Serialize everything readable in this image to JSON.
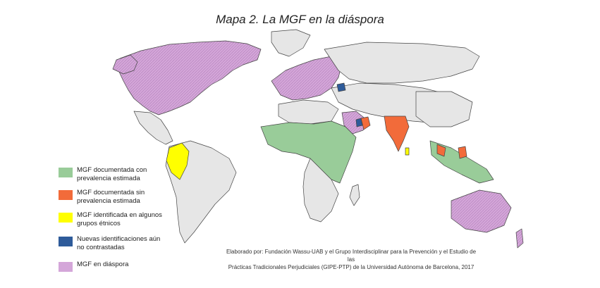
{
  "title": "Mapa 2. La MGF en la diáspora",
  "legend": {
    "items": [
      {
        "label": "MGF documentada con prevalencia estimada",
        "color": "#99cc99"
      },
      {
        "label": "MGF documentada sin prevalencia estimada",
        "color": "#f26b3a"
      },
      {
        "label": "MGF identificada en algunos grupos étnicos",
        "color": "#ffff00"
      },
      {
        "label": "Nuevas identificaciones aún no contrastadas",
        "color": "#2e5b9a"
      },
      {
        "label": "MGF en diáspora",
        "color": "#d4a6d9"
      }
    ]
  },
  "credits": {
    "line1": "Elaborado por: Fundación Wassu-UAB y el Grupo Interdisciplinar para la Prevención y el Estudio de las",
    "line2": "Prácticas Tradicionales Perjudiciales (GIPE-PTP) de la Universidad Autónoma de Barcelona, 2017"
  },
  "colors": {
    "land_default": "#e6e6e6",
    "border": "#444444",
    "documented_prevalence": "#99cc99",
    "documented_no_prevalence": "#f26b3a",
    "ethnic_groups": "#ffff00",
    "new_identifications": "#2e5b9a",
    "diaspora": "#d4a6d9"
  }
}
